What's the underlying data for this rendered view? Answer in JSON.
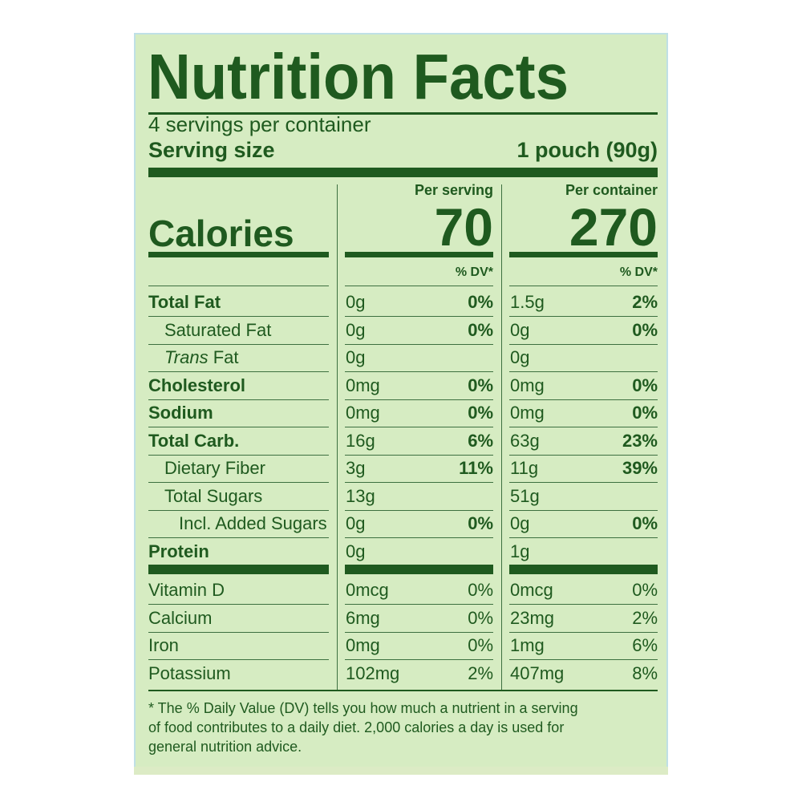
{
  "header": {
    "title": "Nutrition Facts",
    "servings": "4 servings per container",
    "serving_size_label": "Serving size",
    "serving_size_value": "1 pouch (90g)"
  },
  "calories": {
    "per_serving_label": "Per serving",
    "per_container_label": "Per container",
    "label": "Calories",
    "per_serving": "70",
    "per_container": "270",
    "dv_serving_label": "% DV*",
    "dv_container_label": "% DV*"
  },
  "nutrients": [
    {
      "name": "Total Fat",
      "amount_serving": "0g",
      "dv_serving": "0%",
      "amount_container": "1.5g",
      "dv_container": "2%"
    },
    {
      "name": "Saturated Fat",
      "amount_serving": "0g",
      "dv_serving": "0%",
      "amount_container": "0g",
      "dv_container": "0%"
    },
    {
      "name_prefix": "Trans",
      "name": "Fat",
      "amount_serving": "0g",
      "amount_container": "0g"
    },
    {
      "name": "Cholesterol",
      "amount_serving": "0mg",
      "dv_serving": "0%",
      "amount_container": "0mg",
      "dv_container": "0%"
    },
    {
      "name": "Sodium",
      "amount_serving": "0mg",
      "dv_serving": "0%",
      "amount_container": "0mg",
      "dv_container": "0%"
    },
    {
      "name": "Total Carb.",
      "amount_serving": "16g",
      "dv_serving": "6%",
      "amount_container": "63g",
      "dv_container": "23%"
    },
    {
      "name": "Dietary Fiber",
      "amount_serving": "3g",
      "dv_serving": "11%",
      "amount_container": "11g",
      "dv_container": "39%"
    },
    {
      "name": "Total Sugars",
      "amount_serving": "13g",
      "amount_container": "51g"
    },
    {
      "name": "Incl. Added Sugars",
      "amount_serving": "0g",
      "dv_serving": "0%",
      "amount_container": "0g",
      "dv_container": "0%"
    },
    {
      "name": "Protein",
      "amount_serving": "0g",
      "amount_container": "1g"
    }
  ],
  "vitamins": [
    {
      "name": "Vitamin D",
      "amount_serving": "0mcg",
      "dv_serving": "0%",
      "amount_container": "0mcg",
      "dv_container": "0%"
    },
    {
      "name": "Calcium",
      "amount_serving": "6mg",
      "dv_serving": "0%",
      "amount_container": "23mg",
      "dv_container": "2%"
    },
    {
      "name": "Iron",
      "amount_serving": "0mg",
      "dv_serving": "0%",
      "amount_container": "1mg",
      "dv_container": "6%"
    },
    {
      "name": "Potassium",
      "amount_serving": "102mg",
      "dv_serving": "2%",
      "amount_container": "407mg",
      "dv_container": "8%"
    }
  ],
  "footnote": [
    "* The % Daily Value (DV) tells you how much a nutrient in a serving",
    "of food contributes to a daily diet. 2,000 calories a day is used for",
    "general nutrition advice."
  ]
}
